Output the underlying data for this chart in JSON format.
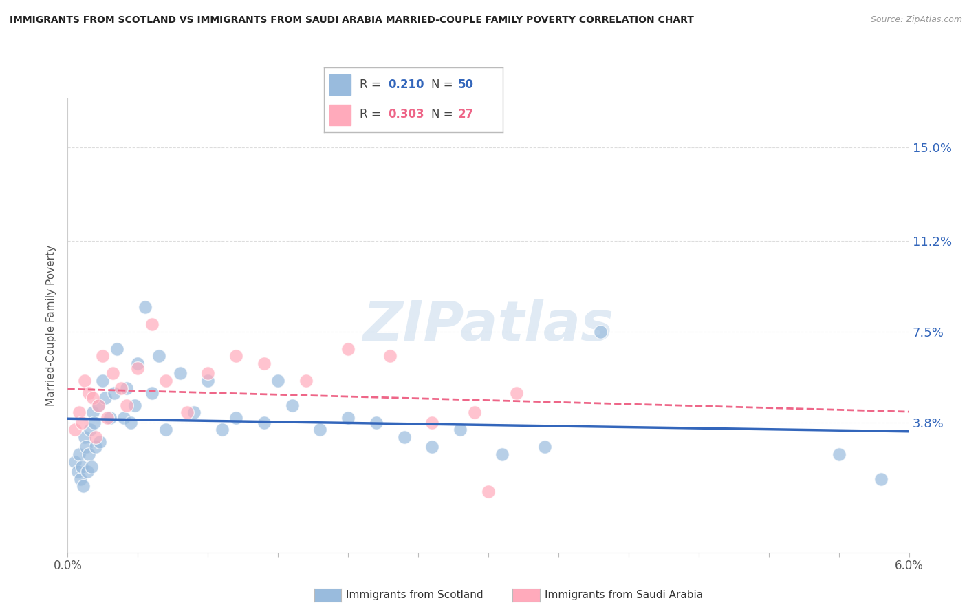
{
  "title": "IMMIGRANTS FROM SCOTLAND VS IMMIGRANTS FROM SAUDI ARABIA MARRIED-COUPLE FAMILY POVERTY CORRELATION CHART",
  "source": "Source: ZipAtlas.com",
  "ylabel_text": "Married-Couple Family Poverty",
  "xlim": [
    0.0,
    6.0
  ],
  "ylim": [
    -1.5,
    17.0
  ],
  "blue_color": "#99BBDD",
  "pink_color": "#FFAABB",
  "trend_blue_color": "#3366BB",
  "trend_pink_color": "#EE6688",
  "background_color": "#FFFFFF",
  "watermark": "ZIPatlas",
  "ytick_vals": [
    0.0,
    3.8,
    7.5,
    11.2,
    15.0
  ],
  "scotland_x": [
    0.05,
    0.07,
    0.08,
    0.09,
    0.1,
    0.11,
    0.12,
    0.13,
    0.14,
    0.15,
    0.16,
    0.17,
    0.18,
    0.19,
    0.2,
    0.22,
    0.23,
    0.25,
    0.27,
    0.3,
    0.33,
    0.35,
    0.4,
    0.42,
    0.45,
    0.48,
    0.5,
    0.55,
    0.6,
    0.65,
    0.7,
    0.8,
    0.9,
    1.0,
    1.1,
    1.2,
    1.4,
    1.5,
    1.6,
    1.8,
    2.0,
    2.2,
    2.4,
    2.6,
    2.8,
    3.1,
    3.4,
    3.8,
    5.5,
    5.8
  ],
  "scotland_y": [
    2.2,
    1.8,
    2.5,
    1.5,
    2.0,
    1.2,
    3.2,
    2.8,
    1.8,
    2.5,
    3.5,
    2.0,
    4.2,
    3.8,
    2.8,
    4.5,
    3.0,
    5.5,
    4.8,
    4.0,
    5.0,
    6.8,
    4.0,
    5.2,
    3.8,
    4.5,
    6.2,
    8.5,
    5.0,
    6.5,
    3.5,
    5.8,
    4.2,
    5.5,
    3.5,
    4.0,
    3.8,
    5.5,
    4.5,
    3.5,
    4.0,
    3.8,
    3.2,
    2.8,
    3.5,
    2.5,
    2.8,
    7.5,
    2.5,
    1.5
  ],
  "saudi_x": [
    0.05,
    0.08,
    0.1,
    0.12,
    0.15,
    0.18,
    0.2,
    0.22,
    0.25,
    0.28,
    0.32,
    0.38,
    0.42,
    0.5,
    0.6,
    0.7,
    0.85,
    1.0,
    1.2,
    1.4,
    1.7,
    2.0,
    2.3,
    2.6,
    2.9,
    3.2,
    3.0
  ],
  "saudi_y": [
    3.5,
    4.2,
    3.8,
    5.5,
    5.0,
    4.8,
    3.2,
    4.5,
    6.5,
    4.0,
    5.8,
    5.2,
    4.5,
    6.0,
    7.8,
    5.5,
    4.2,
    5.8,
    6.5,
    6.2,
    5.5,
    6.8,
    6.5,
    3.8,
    4.2,
    5.0,
    1.0
  ]
}
